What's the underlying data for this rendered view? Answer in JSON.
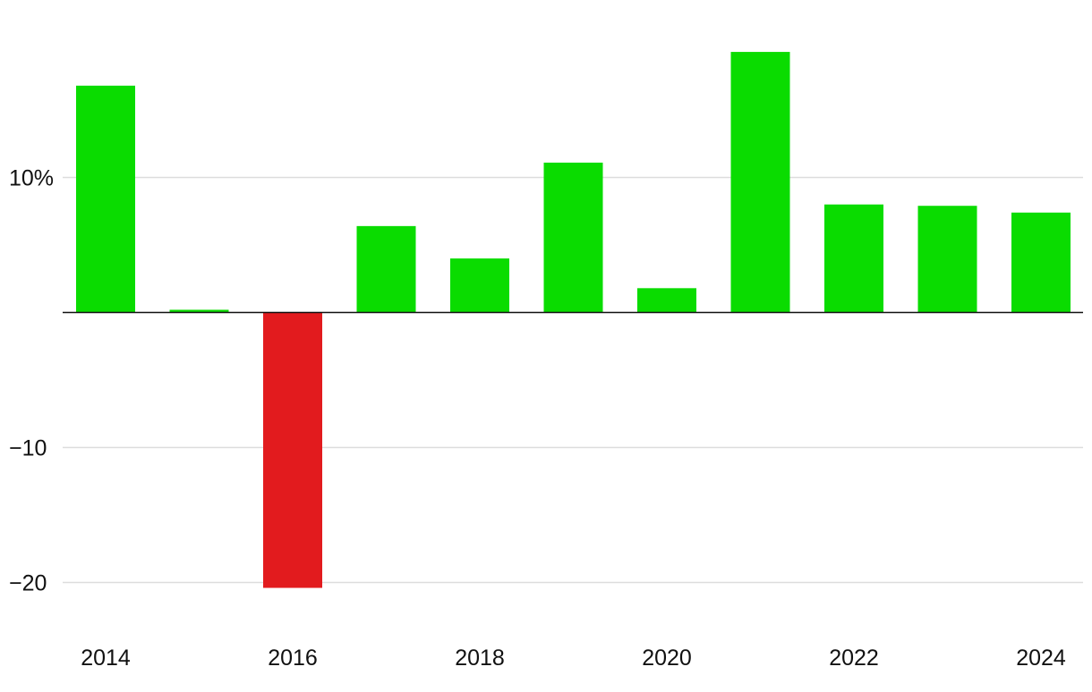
{
  "chart_data": {
    "type": "bar",
    "title": "",
    "xlabel": "",
    "ylabel": "",
    "categories": [
      "2014",
      "2015",
      "2016",
      "2017",
      "2018",
      "2019",
      "2020",
      "2021",
      "2022",
      "2023",
      "2024"
    ],
    "values": [
      16.8,
      0.2,
      -20.4,
      6.4,
      4.0,
      11.1,
      1.8,
      19.3,
      8.0,
      7.9,
      7.4
    ],
    "x_tick_labels": [
      "2014",
      "",
      "2016",
      "",
      "2018",
      "",
      "2020",
      "",
      "2022",
      "",
      "2024"
    ],
    "ylim": [
      -23,
      22
    ],
    "y_ticks": [
      {
        "value": 10,
        "label": "10%"
      },
      {
        "value": -10,
        "label": "−10"
      },
      {
        "value": -20,
        "label": "−20"
      }
    ],
    "grid": true,
    "colors": {
      "positive": "#0adc00",
      "negative": "#e21b1e",
      "gridline": "#dddddd",
      "zero_line": "#111111"
    }
  }
}
